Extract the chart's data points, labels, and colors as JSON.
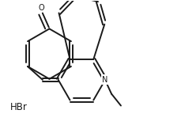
{
  "background_color": "#ffffff",
  "line_color": "#1a1a1a",
  "line_width": 1.4,
  "hbr_text": "HBr",
  "hbr_fontsize": 8.5
}
